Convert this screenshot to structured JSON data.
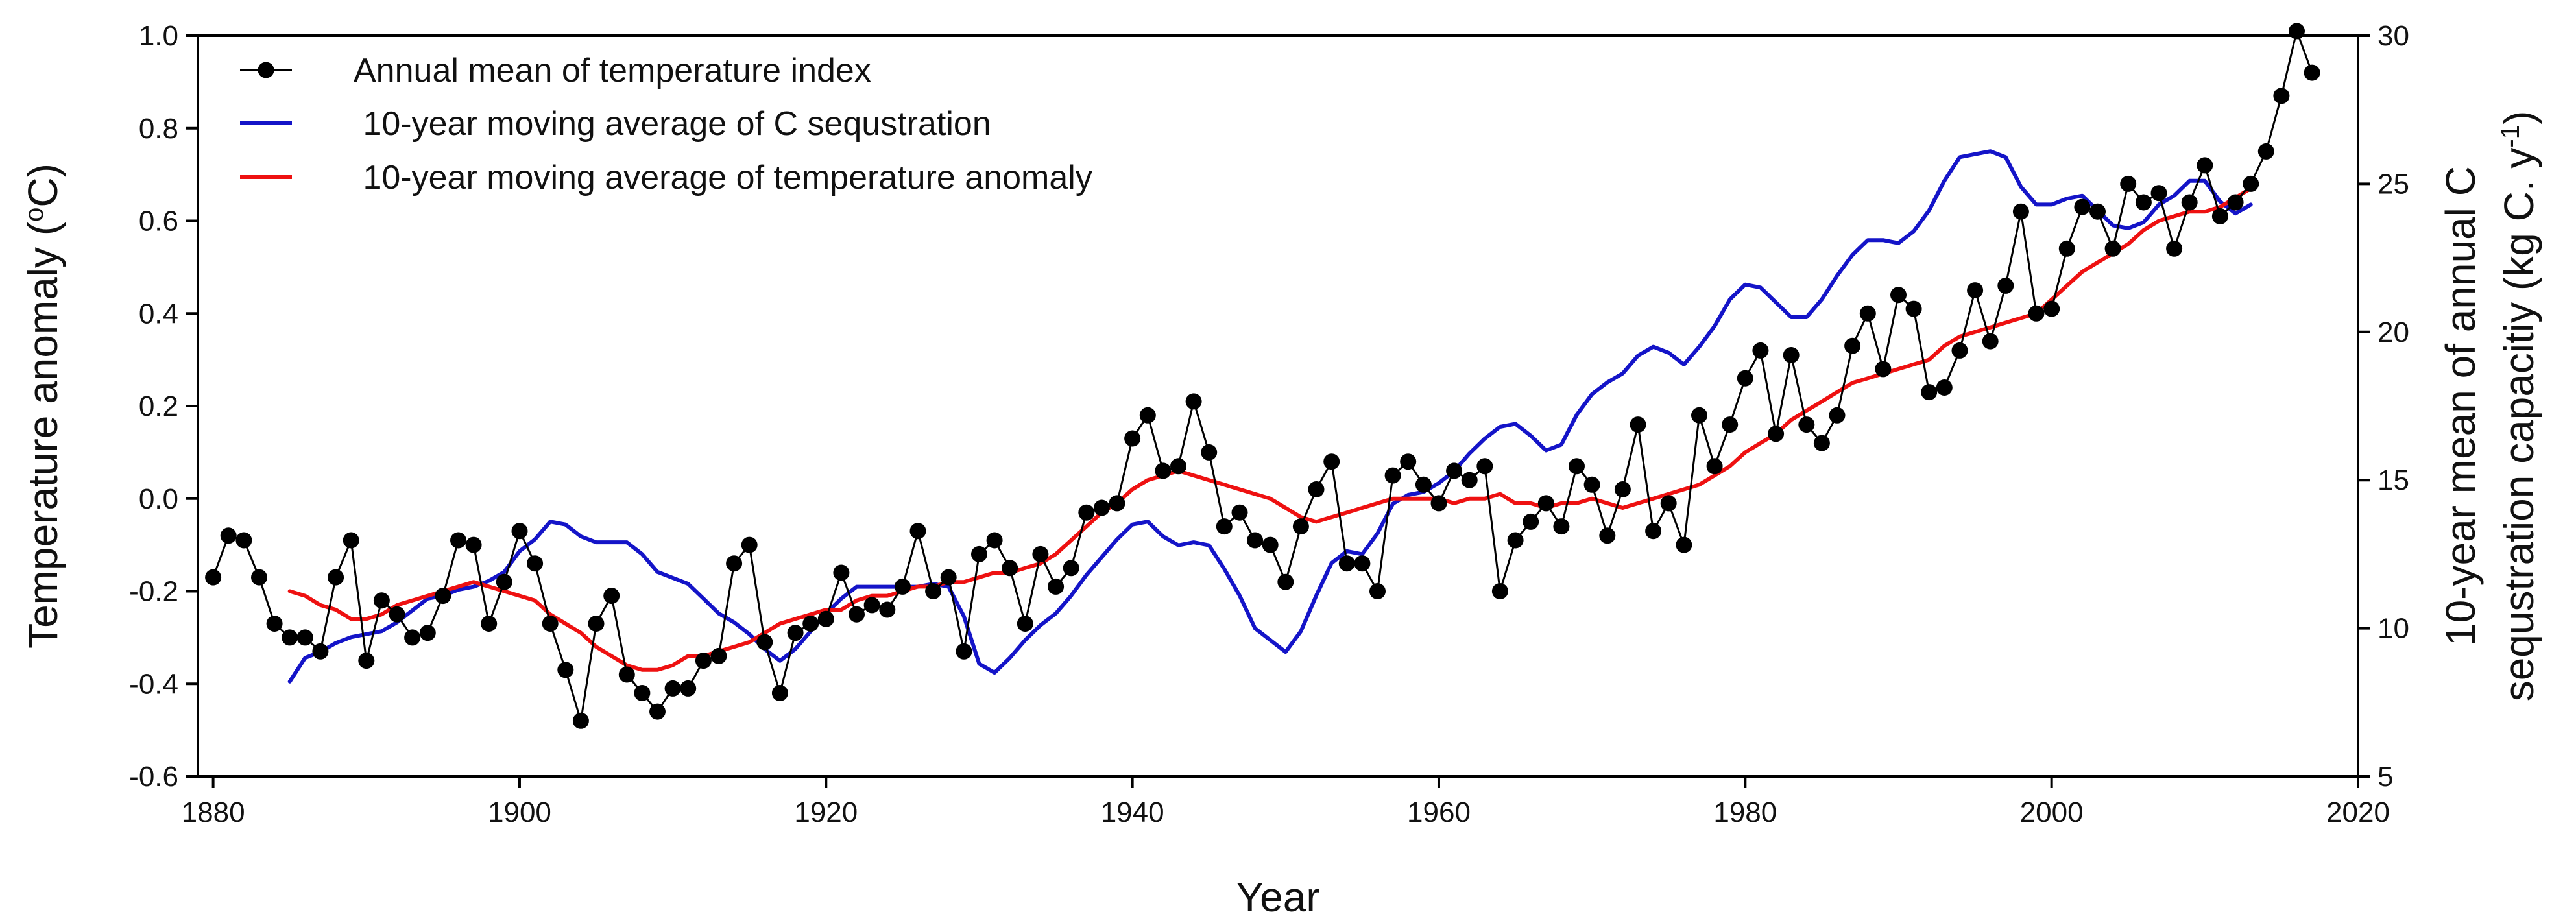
{
  "chart_data": {
    "type": "line",
    "title": "",
    "xlabel": "Year",
    "ylabel_left": "Temperature anomaly (°C)",
    "ylabel_left_parts": {
      "pre": "Temperature anomaly (",
      "sup": "o",
      "post": "C)"
    },
    "ylabel_right_line1": "10-year mean of annual C",
    "ylabel_right_line2_parts": {
      "pre": "sequstration capacitiy  (kg C. y",
      "sup": "-1",
      "post": ")"
    },
    "xlim": [
      1879,
      2020
    ],
    "ylim_left": [
      -0.6,
      1.0
    ],
    "ylim_right": [
      5,
      30
    ],
    "x_ticks": [
      1880,
      1900,
      1920,
      1940,
      1960,
      1980,
      2000,
      2020
    ],
    "y_left_ticks": [
      -0.6,
      -0.4,
      -0.2,
      0.0,
      0.2,
      0.4,
      0.6,
      0.8,
      1.0
    ],
    "y_left_tick_labels": [
      "-0.6",
      "-0.4",
      "-0.2",
      "0.0",
      "0.2",
      "0.4",
      "0.6",
      "0.8",
      "1.0"
    ],
    "y_right_ticks": [
      5,
      10,
      15,
      20,
      25,
      30
    ],
    "y_right_tick_labels": [
      "5",
      "10",
      "15",
      "20",
      "25",
      "30"
    ],
    "legend_position": "top-left",
    "legend": [
      {
        "key": "annual",
        "label": "Annual mean of temperature index",
        "color": "#000000",
        "marker": "circle"
      },
      {
        "key": "c_seq",
        "label": " 10-year moving average of C sequstration",
        "color": "#1414c8",
        "marker": "none"
      },
      {
        "key": "temp_ma",
        "label": " 10-year moving average of temperature anomaly",
        "color": "#ee1111",
        "marker": "none"
      }
    ],
    "series": [
      {
        "name": "Annual mean of temperature index",
        "key": "annual",
        "axis": "left",
        "color": "#000000",
        "x": [
          1880,
          1881,
          1882,
          1883,
          1884,
          1885,
          1886,
          1887,
          1888,
          1889,
          1890,
          1891,
          1892,
          1893,
          1894,
          1895,
          1896,
          1897,
          1898,
          1899,
          1900,
          1901,
          1902,
          1903,
          1904,
          1905,
          1906,
          1907,
          1908,
          1909,
          1910,
          1911,
          1912,
          1913,
          1914,
          1915,
          1916,
          1917,
          1918,
          1919,
          1920,
          1921,
          1922,
          1923,
          1924,
          1925,
          1926,
          1927,
          1928,
          1929,
          1930,
          1931,
          1932,
          1933,
          1934,
          1935,
          1936,
          1937,
          1938,
          1939,
          1940,
          1941,
          1942,
          1943,
          1944,
          1945,
          1946,
          1947,
          1948,
          1949,
          1950,
          1951,
          1952,
          1953,
          1954,
          1955,
          1956,
          1957,
          1958,
          1959,
          1960,
          1961,
          1962,
          1963,
          1964,
          1965,
          1966,
          1967,
          1968,
          1969,
          1970,
          1971,
          1972,
          1973,
          1974,
          1975,
          1976,
          1977,
          1978,
          1979,
          1980,
          1981,
          1982,
          1983,
          1984,
          1985,
          1986,
          1987,
          1988,
          1989,
          1990,
          1991,
          1992,
          1993,
          1994,
          1995,
          1996,
          1997,
          1998,
          1999,
          2000,
          2001,
          2002,
          2003,
          2004,
          2005,
          2006,
          2007,
          2008,
          2009,
          2010,
          2011,
          2012,
          2013,
          2014,
          2015,
          2016,
          2017
        ],
        "values": [
          -0.17,
          -0.08,
          -0.09,
          -0.17,
          -0.27,
          -0.3,
          -0.3,
          -0.33,
          -0.17,
          -0.09,
          -0.35,
          -0.22,
          -0.25,
          -0.3,
          -0.29,
          -0.21,
          -0.09,
          -0.1,
          -0.27,
          -0.18,
          -0.07,
          -0.14,
          -0.27,
          -0.37,
          -0.48,
          -0.27,
          -0.21,
          -0.38,
          -0.42,
          -0.46,
          -0.41,
          -0.41,
          -0.35,
          -0.34,
          -0.14,
          -0.1,
          -0.31,
          -0.42,
          -0.29,
          -0.27,
          -0.26,
          -0.16,
          -0.25,
          -0.23,
          -0.24,
          -0.19,
          -0.07,
          -0.2,
          -0.17,
          -0.33,
          -0.12,
          -0.09,
          -0.15,
          -0.27,
          -0.12,
          -0.19,
          -0.15,
          -0.03,
          -0.02,
          -0.01,
          0.13,
          0.18,
          0.06,
          0.07,
          0.21,
          0.1,
          -0.06,
          -0.03,
          -0.09,
          -0.1,
          -0.18,
          -0.06,
          0.02,
          0.08,
          -0.14,
          -0.14,
          -0.2,
          0.05,
          0.08,
          0.03,
          -0.01,
          0.06,
          0.04,
          0.07,
          -0.2,
          -0.09,
          -0.05,
          -0.01,
          -0.06,
          0.07,
          0.03,
          -0.08,
          0.02,
          0.16,
          -0.07,
          -0.01,
          -0.1,
          0.18,
          0.07,
          0.16,
          0.26,
          0.32,
          0.14,
          0.31,
          0.16,
          0.12,
          0.18,
          0.33,
          0.4,
          0.28,
          0.44,
          0.41,
          0.23,
          0.24,
          0.32,
          0.45,
          0.34,
          0.46,
          0.62,
          0.4,
          0.41,
          0.54,
          0.63,
          0.62,
          0.54,
          0.68,
          0.64,
          0.66,
          0.54,
          0.64,
          0.72,
          0.61,
          0.64,
          0.68,
          0.75,
          0.87,
          1.01,
          0.92
        ]
      },
      {
        "name": "10-year moving average of C sequstration",
        "key": "c_seq",
        "axis": "right",
        "color": "#1414c8",
        "x": [
          1885,
          1886,
          1887,
          1888,
          1889,
          1890,
          1891,
          1892,
          1893,
          1894,
          1895,
          1896,
          1897,
          1898,
          1899,
          1900,
          1901,
          1902,
          1903,
          1904,
          1905,
          1906,
          1907,
          1908,
          1909,
          1910,
          1911,
          1912,
          1913,
          1914,
          1915,
          1916,
          1917,
          1918,
          1919,
          1920,
          1921,
          1922,
          1923,
          1924,
          1925,
          1926,
          1927,
          1928,
          1929,
          1930,
          1931,
          1932,
          1933,
          1934,
          1935,
          1936,
          1937,
          1938,
          1939,
          1940,
          1941,
          1942,
          1943,
          1944,
          1945,
          1946,
          1947,
          1948,
          1949,
          1950,
          1951,
          1952,
          1953,
          1954,
          1955,
          1956,
          1957,
          1958,
          1959,
          1960,
          1961,
          1962,
          1963,
          1964,
          1965,
          1966,
          1967,
          1968,
          1969,
          1970,
          1971,
          1972,
          1973,
          1974,
          1975,
          1976,
          1977,
          1978,
          1979,
          1980,
          1981,
          1982,
          1983,
          1984,
          1985,
          1986,
          1987,
          1988,
          1989,
          1990,
          1991,
          1992,
          1993,
          1994,
          1995,
          1996,
          1997,
          1998,
          1999,
          2000,
          2001,
          2002,
          2003,
          2004,
          2005,
          2006,
          2007,
          2008,
          2009,
          2010,
          2011,
          2012,
          2013
        ],
        "values": [
          8.2,
          9.0,
          9.2,
          9.5,
          9.7,
          9.8,
          9.9,
          10.2,
          10.6,
          11.0,
          11.1,
          11.3,
          11.4,
          11.6,
          11.9,
          12.6,
          13.0,
          13.6,
          13.5,
          13.1,
          12.9,
          12.9,
          12.9,
          12.5,
          11.9,
          11.7,
          11.5,
          11.0,
          10.5,
          10.2,
          9.8,
          9.3,
          8.9,
          9.3,
          9.9,
          10.5,
          11.0,
          11.4,
          11.4,
          11.4,
          11.4,
          11.4,
          11.5,
          11.4,
          10.4,
          8.8,
          8.5,
          9.0,
          9.6,
          10.1,
          10.5,
          11.1,
          11.8,
          12.4,
          13.0,
          13.5,
          13.6,
          13.1,
          12.8,
          12.9,
          12.8,
          12.0,
          11.1,
          10.0,
          9.6,
          9.2,
          9.9,
          11.1,
          12.2,
          12.6,
          12.5,
          13.2,
          14.2,
          14.5,
          14.6,
          14.9,
          15.3,
          15.9,
          16.4,
          16.8,
          16.9,
          16.5,
          16.0,
          16.2,
          17.2,
          17.9,
          18.3,
          18.6,
          19.2,
          19.5,
          19.3,
          18.9,
          19.5,
          20.2,
          21.1,
          21.6,
          21.5,
          21.0,
          20.5,
          20.5,
          21.1,
          21.9,
          22.6,
          23.1,
          23.1,
          23.0,
          23.4,
          24.1,
          25.1,
          25.9,
          26.0,
          26.1,
          25.9,
          24.9,
          24.3,
          24.3,
          24.5,
          24.6,
          24.1,
          23.6,
          23.5,
          23.7,
          24.3,
          24.6,
          25.1,
          25.1,
          24.4,
          24.0,
          24.3
        ]
      },
      {
        "name": "10-year moving average of temperature anomaly",
        "key": "temp_ma",
        "axis": "left",
        "color": "#ee1111",
        "x": [
          1885,
          1886,
          1887,
          1888,
          1889,
          1890,
          1891,
          1892,
          1893,
          1894,
          1895,
          1896,
          1897,
          1898,
          1899,
          1900,
          1901,
          1902,
          1903,
          1904,
          1905,
          1906,
          1907,
          1908,
          1909,
          1910,
          1911,
          1912,
          1913,
          1914,
          1915,
          1916,
          1917,
          1918,
          1919,
          1920,
          1921,
          1922,
          1923,
          1924,
          1925,
          1926,
          1927,
          1928,
          1929,
          1930,
          1931,
          1932,
          1933,
          1934,
          1935,
          1936,
          1937,
          1938,
          1939,
          1940,
          1941,
          1942,
          1943,
          1944,
          1945,
          1946,
          1947,
          1948,
          1949,
          1950,
          1951,
          1952,
          1953,
          1954,
          1955,
          1956,
          1957,
          1958,
          1959,
          1960,
          1961,
          1962,
          1963,
          1964,
          1965,
          1966,
          1967,
          1968,
          1969,
          1970,
          1971,
          1972,
          1973,
          1974,
          1975,
          1976,
          1977,
          1978,
          1979,
          1980,
          1981,
          1982,
          1983,
          1984,
          1985,
          1986,
          1987,
          1988,
          1989,
          1990,
          1991,
          1992,
          1993,
          1994,
          1995,
          1996,
          1997,
          1998,
          1999,
          2000,
          2001,
          2002,
          2003,
          2004,
          2005,
          2006,
          2007,
          2008,
          2009,
          2010,
          2011,
          2012,
          2013
        ],
        "values": [
          -0.2,
          -0.21,
          -0.23,
          -0.24,
          -0.26,
          -0.26,
          -0.25,
          -0.23,
          -0.22,
          -0.21,
          -0.2,
          -0.19,
          -0.18,
          -0.19,
          -0.2,
          -0.21,
          -0.22,
          -0.25,
          -0.27,
          -0.29,
          -0.32,
          -0.34,
          -0.36,
          -0.37,
          -0.37,
          -0.36,
          -0.34,
          -0.34,
          -0.33,
          -0.32,
          -0.31,
          -0.29,
          -0.27,
          -0.26,
          -0.25,
          -0.24,
          -0.24,
          -0.22,
          -0.21,
          -0.21,
          -0.2,
          -0.19,
          -0.19,
          -0.18,
          -0.18,
          -0.17,
          -0.16,
          -0.16,
          -0.15,
          -0.14,
          -0.12,
          -0.09,
          -0.06,
          -0.03,
          -0.01,
          0.02,
          0.04,
          0.05,
          0.06,
          0.05,
          0.04,
          0.03,
          0.02,
          0.01,
          0.0,
          -0.02,
          -0.04,
          -0.05,
          -0.04,
          -0.03,
          -0.02,
          -0.01,
          0.0,
          0.0,
          0.0,
          0.0,
          -0.01,
          0.0,
          0.0,
          0.01,
          -0.01,
          -0.01,
          -0.02,
          -0.01,
          -0.01,
          0.0,
          -0.01,
          -0.02,
          -0.01,
          0.0,
          0.01,
          0.02,
          0.03,
          0.05,
          0.07,
          0.1,
          0.12,
          0.14,
          0.17,
          0.19,
          0.21,
          0.23,
          0.25,
          0.26,
          0.27,
          0.28,
          0.29,
          0.3,
          0.33,
          0.35,
          0.36,
          0.37,
          0.38,
          0.39,
          0.4,
          0.43,
          0.46,
          0.49,
          0.51,
          0.53,
          0.55,
          0.58,
          0.6,
          0.61,
          0.62,
          0.62,
          0.63,
          0.65,
          0.67
        ]
      }
    ]
  }
}
